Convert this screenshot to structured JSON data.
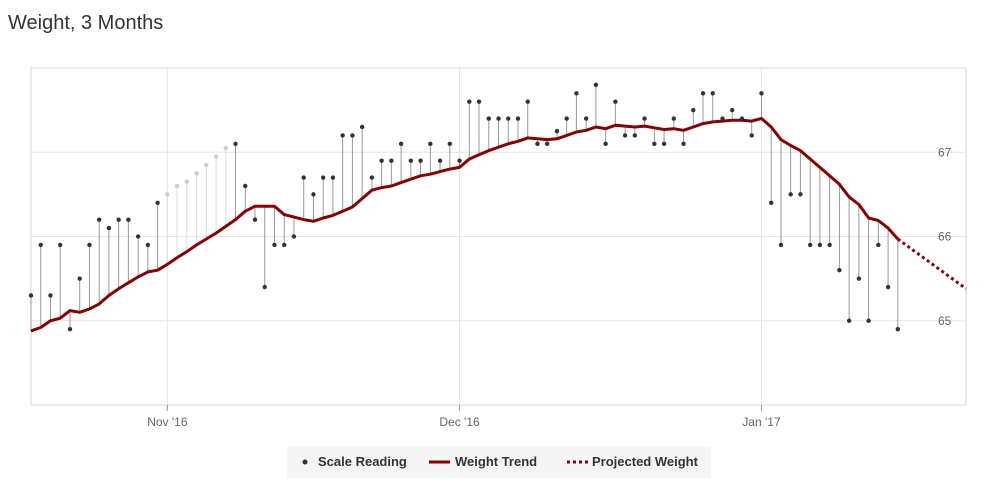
{
  "title": "Weight, 3 Months",
  "colors": {
    "trend": "#8b0000",
    "projected": "#8b0000",
    "reading": "#333333",
    "stem": "#999999",
    "stem_faded": "#dddddd",
    "reading_faded": "#cccccc",
    "grid": "#e6e6e6",
    "legend_bg": "#f5f5f5"
  },
  "chart_data": {
    "type": "line",
    "title": "Weight, 3 Months",
    "xlabel": "",
    "ylabel": "",
    "x_ticks": [
      {
        "label": "Nov '16",
        "day": 14
      },
      {
        "label": "Dec '16",
        "day": 44
      },
      {
        "label": "Jan '17",
        "day": 75
      }
    ],
    "y_ticks": [
      65,
      66,
      67
    ],
    "xlim": [
      0,
      96
    ],
    "ylim": [
      64.0,
      68.0
    ],
    "grid": true,
    "legend": {
      "position": "bottom-center",
      "entries": [
        "Scale Reading",
        "Weight Trend",
        "Projected Weight"
      ]
    },
    "series": [
      {
        "name": "Scale Reading",
        "kind": "scatter",
        "points": [
          [
            0,
            65.3
          ],
          [
            1,
            65.9
          ],
          [
            2,
            65.3
          ],
          [
            3,
            65.9
          ],
          [
            4,
            64.9
          ],
          [
            5,
            65.5
          ],
          [
            6,
            65.9
          ],
          [
            7,
            66.2
          ],
          [
            8,
            66.1
          ],
          [
            9,
            66.2
          ],
          [
            10,
            66.2
          ],
          [
            11,
            66.0
          ],
          [
            12,
            65.9
          ],
          [
            13,
            66.4
          ],
          [
            14,
            66.5
          ],
          [
            15,
            66.6
          ],
          [
            16,
            66.65
          ],
          [
            17,
            66.75
          ],
          [
            18,
            66.85
          ],
          [
            19,
            66.95
          ],
          [
            20,
            67.05
          ],
          [
            21,
            67.1
          ],
          [
            22,
            66.6
          ],
          [
            23,
            66.2
          ],
          [
            24,
            65.4
          ],
          [
            25,
            65.9
          ],
          [
            26,
            65.9
          ],
          [
            27,
            66.0
          ],
          [
            28,
            66.7
          ],
          [
            29,
            66.5
          ],
          [
            30,
            66.7
          ],
          [
            31,
            66.7
          ],
          [
            32,
            67.2
          ],
          [
            33,
            67.2
          ],
          [
            34,
            67.3
          ],
          [
            35,
            66.7
          ],
          [
            36,
            66.9
          ],
          [
            37,
            66.9
          ],
          [
            38,
            67.1
          ],
          [
            39,
            66.9
          ],
          [
            40,
            66.9
          ],
          [
            41,
            67.1
          ],
          [
            42,
            66.9
          ],
          [
            43,
            67.1
          ],
          [
            44,
            66.9
          ],
          [
            45,
            67.6
          ],
          [
            46,
            67.6
          ],
          [
            47,
            67.4
          ],
          [
            48,
            67.4
          ],
          [
            49,
            67.4
          ],
          [
            50,
            67.4
          ],
          [
            51,
            67.6
          ],
          [
            52,
            67.1
          ],
          [
            53,
            67.1
          ],
          [
            54,
            67.25
          ],
          [
            55,
            67.4
          ],
          [
            56,
            67.7
          ],
          [
            57,
            67.4
          ],
          [
            58,
            67.8
          ],
          [
            59,
            67.1
          ],
          [
            60,
            67.6
          ],
          [
            61,
            67.2
          ],
          [
            62,
            67.2
          ],
          [
            63,
            67.4
          ],
          [
            64,
            67.1
          ],
          [
            65,
            67.1
          ],
          [
            66,
            67.4
          ],
          [
            67,
            67.1
          ],
          [
            68,
            67.5
          ],
          [
            69,
            67.7
          ],
          [
            70,
            67.7
          ],
          [
            71,
            67.4
          ],
          [
            72,
            67.5
          ],
          [
            73,
            67.4
          ],
          [
            74,
            67.2
          ],
          [
            75,
            67.7
          ],
          [
            76,
            66.4
          ],
          [
            77,
            65.9
          ],
          [
            78,
            66.5
          ],
          [
            79,
            66.5
          ],
          [
            80,
            65.9
          ],
          [
            81,
            65.9
          ],
          [
            82,
            65.9
          ],
          [
            83,
            65.6
          ],
          [
            84,
            65.0
          ],
          [
            85,
            65.5
          ],
          [
            86,
            65.0
          ],
          [
            87,
            65.9
          ],
          [
            88,
            65.4
          ],
          [
            89,
            64.9
          ]
        ],
        "faded_range": [
          14,
          20
        ]
      },
      {
        "name": "Weight Trend",
        "kind": "line",
        "points": [
          [
            0,
            64.88
          ],
          [
            1,
            64.92
          ],
          [
            2,
            65.0
          ],
          [
            3,
            65.03
          ],
          [
            4,
            65.12
          ],
          [
            5,
            65.1
          ],
          [
            6,
            65.14
          ],
          [
            7,
            65.2
          ],
          [
            8,
            65.3
          ],
          [
            9,
            65.38
          ],
          [
            10,
            65.45
          ],
          [
            11,
            65.52
          ],
          [
            12,
            65.58
          ],
          [
            13,
            65.6
          ],
          [
            14,
            65.67
          ],
          [
            15,
            65.75
          ],
          [
            16,
            65.82
          ],
          [
            17,
            65.9
          ],
          [
            18,
            65.97
          ],
          [
            19,
            66.04
          ],
          [
            20,
            66.12
          ],
          [
            21,
            66.2
          ],
          [
            22,
            66.3
          ],
          [
            23,
            66.36
          ],
          [
            24,
            66.36
          ],
          [
            25,
            66.36
          ],
          [
            26,
            66.26
          ],
          [
            27,
            66.23
          ],
          [
            28,
            66.2
          ],
          [
            29,
            66.18
          ],
          [
            30,
            66.22
          ],
          [
            31,
            66.25
          ],
          [
            32,
            66.3
          ],
          [
            33,
            66.35
          ],
          [
            34,
            66.45
          ],
          [
            35,
            66.55
          ],
          [
            36,
            66.58
          ],
          [
            37,
            66.6
          ],
          [
            38,
            66.64
          ],
          [
            39,
            66.68
          ],
          [
            40,
            66.72
          ],
          [
            41,
            66.74
          ],
          [
            42,
            66.77
          ],
          [
            43,
            66.8
          ],
          [
            44,
            66.82
          ],
          [
            45,
            66.92
          ],
          [
            46,
            66.97
          ],
          [
            47,
            67.02
          ],
          [
            48,
            67.06
          ],
          [
            49,
            67.1
          ],
          [
            50,
            67.13
          ],
          [
            51,
            67.17
          ],
          [
            52,
            67.16
          ],
          [
            53,
            67.15
          ],
          [
            54,
            67.16
          ],
          [
            55,
            67.2
          ],
          [
            56,
            67.24
          ],
          [
            57,
            67.26
          ],
          [
            58,
            67.3
          ],
          [
            59,
            67.28
          ],
          [
            60,
            67.32
          ],
          [
            61,
            67.31
          ],
          [
            62,
            67.3
          ],
          [
            63,
            67.31
          ],
          [
            64,
            67.29
          ],
          [
            65,
            67.27
          ],
          [
            66,
            67.28
          ],
          [
            67,
            67.26
          ],
          [
            68,
            67.3
          ],
          [
            69,
            67.34
          ],
          [
            70,
            67.36
          ],
          [
            71,
            67.37
          ],
          [
            72,
            67.38
          ],
          [
            73,
            67.38
          ],
          [
            74,
            67.37
          ],
          [
            75,
            67.4
          ],
          [
            76,
            67.3
          ],
          [
            77,
            67.15
          ],
          [
            78,
            67.08
          ],
          [
            79,
            67.02
          ],
          [
            80,
            66.92
          ],
          [
            81,
            66.82
          ],
          [
            82,
            66.72
          ],
          [
            83,
            66.62
          ],
          [
            84,
            66.47
          ],
          [
            85,
            66.38
          ],
          [
            86,
            66.22
          ],
          [
            87,
            66.19
          ],
          [
            88,
            66.1
          ],
          [
            89,
            65.97
          ]
        ]
      },
      {
        "name": "Projected Weight",
        "kind": "dashed-line",
        "points": [
          [
            89,
            65.97
          ],
          [
            96,
            65.38
          ]
        ]
      }
    ]
  }
}
